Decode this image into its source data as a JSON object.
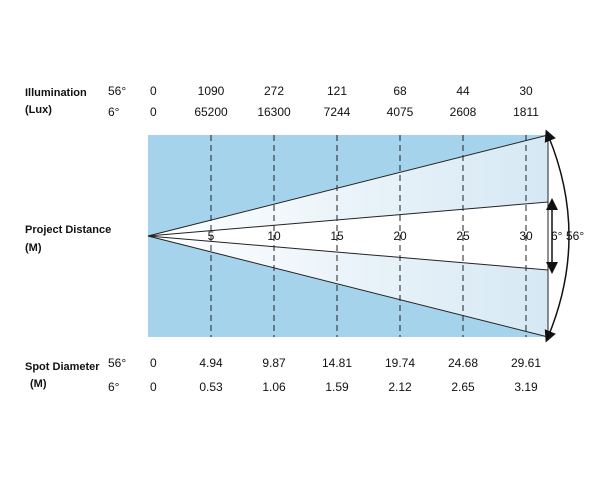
{
  "illumination": {
    "label": "Illumination",
    "unit": "(Lux)",
    "rows": [
      {
        "angle": "56°",
        "values": [
          0,
          1090,
          272,
          121,
          68,
          44,
          30
        ]
      },
      {
        "angle": "6°",
        "values": [
          0,
          65200,
          16300,
          7244,
          4075,
          2608,
          1811
        ]
      }
    ]
  },
  "distance": {
    "label": "Project Distance",
    "unit": "(M)",
    "values": [
      5,
      10,
      15,
      20,
      25,
      30
    ]
  },
  "spot_diameter": {
    "label": "Spot Diameter",
    "unit": "(M)",
    "rows": [
      {
        "angle": "56°",
        "values": [
          0,
          4.94,
          9.87,
          14.81,
          19.74,
          24.68,
          29.61
        ]
      },
      {
        "angle": "6°",
        "values": [
          0,
          0.53,
          1.06,
          1.59,
          2.12,
          2.65,
          3.19
        ]
      }
    ]
  },
  "beam_angles": {
    "narrow": "6°",
    "wide": "56°"
  }
}
